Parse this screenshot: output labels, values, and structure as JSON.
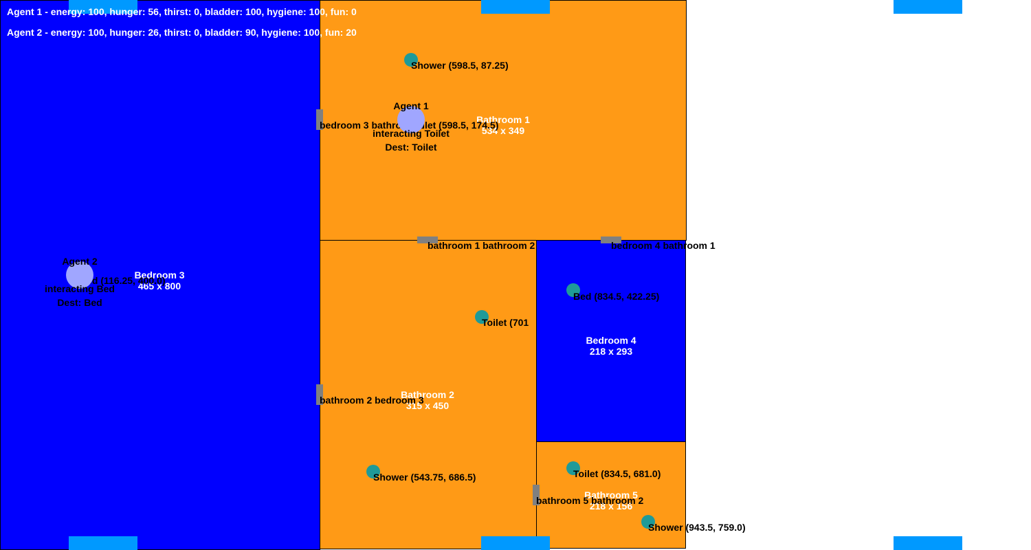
{
  "colors": {
    "bedroom": "#0000ff",
    "bathroom": "#ff9a16",
    "door": "#808080",
    "object": "#1f9a98",
    "agent": "#a0a6ff",
    "window": "#0099ff"
  },
  "status": [
    "Agent 1 - energy: 100, hunger: 56, thirst: 0, bladder: 100, hygiene: 100, fun: 0",
    "Agent 2 - energy: 100, hunger: 26, thirst: 0, bladder: 90, hygiene: 100, fun: 20"
  ],
  "rooms": {
    "bedroom3": {
      "name": "Bedroom 3",
      "size": "465 x 800"
    },
    "bathroom1": {
      "name": "Bathroom 1",
      "size": "534 x 349"
    },
    "bathroom2": {
      "name": "Bathroom 2",
      "size": "315 x 450"
    },
    "bedroom4": {
      "name": "Bedroom 4",
      "size": "218 x 293"
    },
    "bathroom5": {
      "name": "Bathroom 5",
      "size": "218 x 156"
    }
  },
  "doors": {
    "d1": "bedroom 3 bathroom 1",
    "d2": "bathroom 1 bathroom 2",
    "d3": "bedroom 4 bathroom 1",
    "d4": "bathroom 2 bedroom 3",
    "d5": "bathroom 5 bathroom 2"
  },
  "objects": {
    "shower1": "Shower (598.5, 87.25)",
    "toilet1": "Toilet (598.5, 174.5)",
    "bed3": "Bed (116.25, 400.0)",
    "toilet2": "Toilet (701",
    "bed4": "Bed (834.5, 422.25)",
    "shower2": "Shower (543.75, 686.5)",
    "toilet5": "Toilet (834.5, 681.0)",
    "shower5": "Shower (943.5, 759.0)"
  },
  "agents": {
    "a1": {
      "name": "Agent 1",
      "state": "interacting Toilet",
      "dest": "Dest: Toilet"
    },
    "a2": {
      "name": "Agent 2",
      "state": "interacting Bed",
      "dest": "Dest: Bed"
    }
  }
}
